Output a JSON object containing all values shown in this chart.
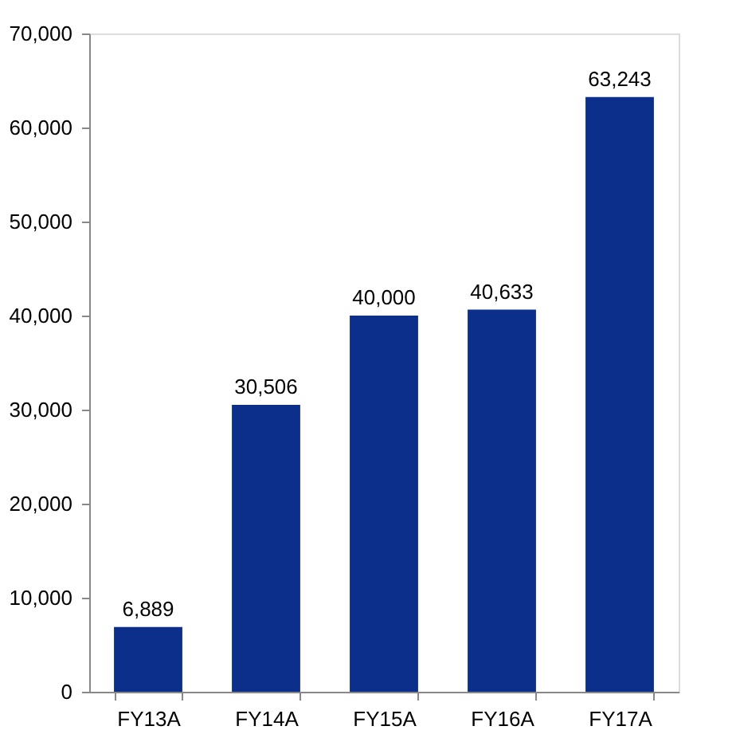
{
  "chart_data": {
    "type": "bar",
    "categories": [
      "FY13A",
      "FY14A",
      "FY15A",
      "FY16A",
      "FY17A"
    ],
    "values": [
      6889,
      30506,
      40000,
      40633,
      63243
    ],
    "value_labels": [
      "6,889",
      "30,506",
      "40,000",
      "40,633",
      "63,243"
    ],
    "color": "#0b2f8a",
    "ylim": [
      0,
      70000
    ],
    "yticks": [
      0,
      {
        "value": 10000,
        "label": "10,000"
      },
      {
        "value": 20000,
        "label": "20,000"
      },
      {
        "value": 30000,
        "label": "30,000"
      },
      {
        "value": 40000,
        "label": "40,000"
      },
      {
        "value": 50000,
        "label": "50,000"
      },
      {
        "value": 60000,
        "label": "60,000"
      },
      {
        "value": 70000,
        "label": "70,000"
      }
    ],
    "grid": false
  }
}
